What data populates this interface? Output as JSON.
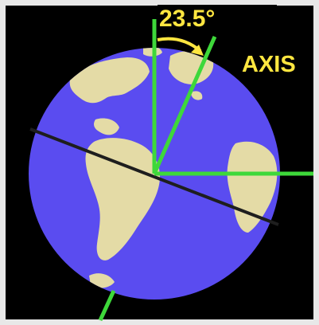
{
  "diagram": {
    "tilt_angle_label": "23.5°",
    "axis_label": "AXIS",
    "colors": {
      "background": "#000000",
      "frame": "#e8e8e8",
      "ocean": "#5a4cf0",
      "land": "#e4dba6",
      "axis_lines": "#3ed83a",
      "equator_line": "#1e1e1e",
      "label_text": "#ffe640"
    }
  }
}
